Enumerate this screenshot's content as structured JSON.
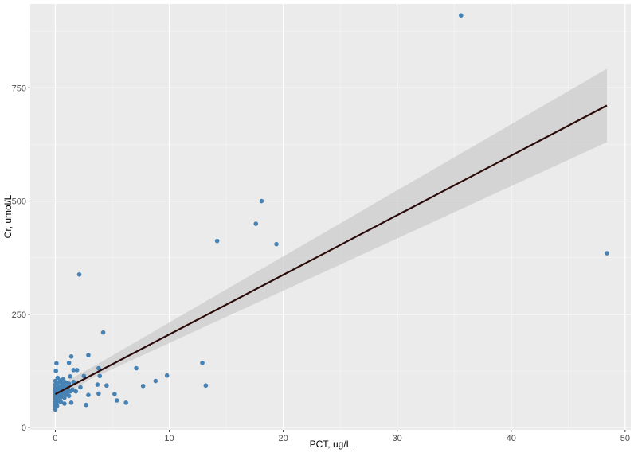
{
  "chart_data": {
    "type": "scatter",
    "xlabel": "PCT, ug/L",
    "ylabel": "Cr, umol/L",
    "xlim": [
      -2.2,
      50.5
    ],
    "ylim": [
      -5,
      935
    ],
    "x_ticks": [
      0,
      10,
      20,
      30,
      40,
      50
    ],
    "y_ticks": [
      0,
      250,
      500,
      750
    ],
    "x_tick_labels": [
      "0",
      "10",
      "20",
      "30",
      "40",
      "50"
    ],
    "y_tick_labels": [
      "0",
      "250",
      "500",
      "750"
    ],
    "grid": true,
    "legend": "none",
    "colors": {
      "panel": "#ebebeb",
      "grid_major": "#ffffff",
      "point": "#4682b4",
      "line": "#2b0a0a",
      "band": "#cccccc"
    },
    "points": [
      [
        35.6,
        910
      ],
      [
        18.1,
        500
      ],
      [
        17.6,
        450
      ],
      [
        14.2,
        412
      ],
      [
        19.4,
        405
      ],
      [
        48.4,
        385
      ],
      [
        2.1,
        338
      ],
      [
        4.2,
        210
      ],
      [
        1.4,
        157
      ],
      [
        2.9,
        160
      ],
      [
        12.9,
        143
      ],
      [
        4.5,
        93
      ],
      [
        13.2,
        93
      ],
      [
        9.8,
        115
      ],
      [
        8.8,
        103
      ],
      [
        7.1,
        131
      ],
      [
        7.7,
        92
      ],
      [
        5.2,
        74
      ],
      [
        5.4,
        60
      ],
      [
        6.2,
        55
      ],
      [
        3.8,
        131
      ],
      [
        3.9,
        114
      ],
      [
        3.7,
        95
      ],
      [
        3.8,
        75
      ],
      [
        2.9,
        72
      ],
      [
        2.5,
        114
      ],
      [
        2.7,
        50
      ],
      [
        2.2,
        89
      ],
      [
        1.9,
        127
      ],
      [
        1.6,
        127
      ],
      [
        1.6,
        101
      ],
      [
        1.8,
        80
      ],
      [
        1.5,
        84
      ],
      [
        1.4,
        55
      ],
      [
        1.2,
        143
      ],
      [
        1.3,
        113
      ],
      [
        1.2,
        97
      ],
      [
        1.0,
        89
      ],
      [
        0.9,
        72
      ],
      [
        0.8,
        53
      ],
      [
        0.7,
        107
      ],
      [
        0.6,
        98
      ],
      [
        0.5,
        79
      ],
      [
        0.4,
        64
      ],
      [
        0.3,
        100
      ],
      [
        0.2,
        58
      ],
      [
        0.1,
        142
      ],
      [
        0.05,
        125
      ],
      [
        0.0,
        103
      ],
      [
        0.0,
        95
      ],
      [
        0.0,
        88
      ],
      [
        0.0,
        82
      ],
      [
        0.0,
        78
      ],
      [
        0.0,
        73
      ],
      [
        0.0,
        68
      ],
      [
        0.0,
        63
      ],
      [
        0.0,
        57
      ],
      [
        0.0,
        52
      ],
      [
        0.0,
        47
      ],
      [
        0.0,
        40
      ],
      [
        0.1,
        86
      ],
      [
        0.1,
        76
      ],
      [
        0.15,
        66
      ],
      [
        0.2,
        92
      ],
      [
        0.25,
        71
      ],
      [
        0.3,
        84
      ],
      [
        0.35,
        62
      ],
      [
        0.4,
        74
      ],
      [
        0.45,
        88
      ],
      [
        0.5,
        56
      ],
      [
        0.55,
        68
      ],
      [
        0.6,
        82
      ],
      [
        0.7,
        91
      ],
      [
        0.75,
        76
      ],
      [
        0.8,
        66
      ],
      [
        0.9,
        100
      ],
      [
        1.0,
        78
      ],
      [
        1.1,
        86
      ],
      [
        1.2,
        70
      ],
      [
        1.3,
        80
      ],
      [
        0.45,
        104
      ],
      [
        0.65,
        95
      ],
      [
        0.85,
        84
      ],
      [
        1.05,
        74
      ],
      [
        0.2,
        110
      ],
      [
        0.1,
        95
      ],
      [
        0.3,
        75
      ],
      [
        0.5,
        90
      ],
      [
        0.05,
        55
      ],
      [
        0.15,
        48
      ]
    ],
    "fit_line": {
      "x": [
        0.0,
        48.4
      ],
      "y": [
        74,
        711
      ]
    },
    "confidence_band": {
      "x": [
        0.0,
        3.0,
        48.4
      ],
      "lower": [
        60,
        106,
        630
      ],
      "upper": [
        90,
        130,
        792
      ]
    }
  }
}
